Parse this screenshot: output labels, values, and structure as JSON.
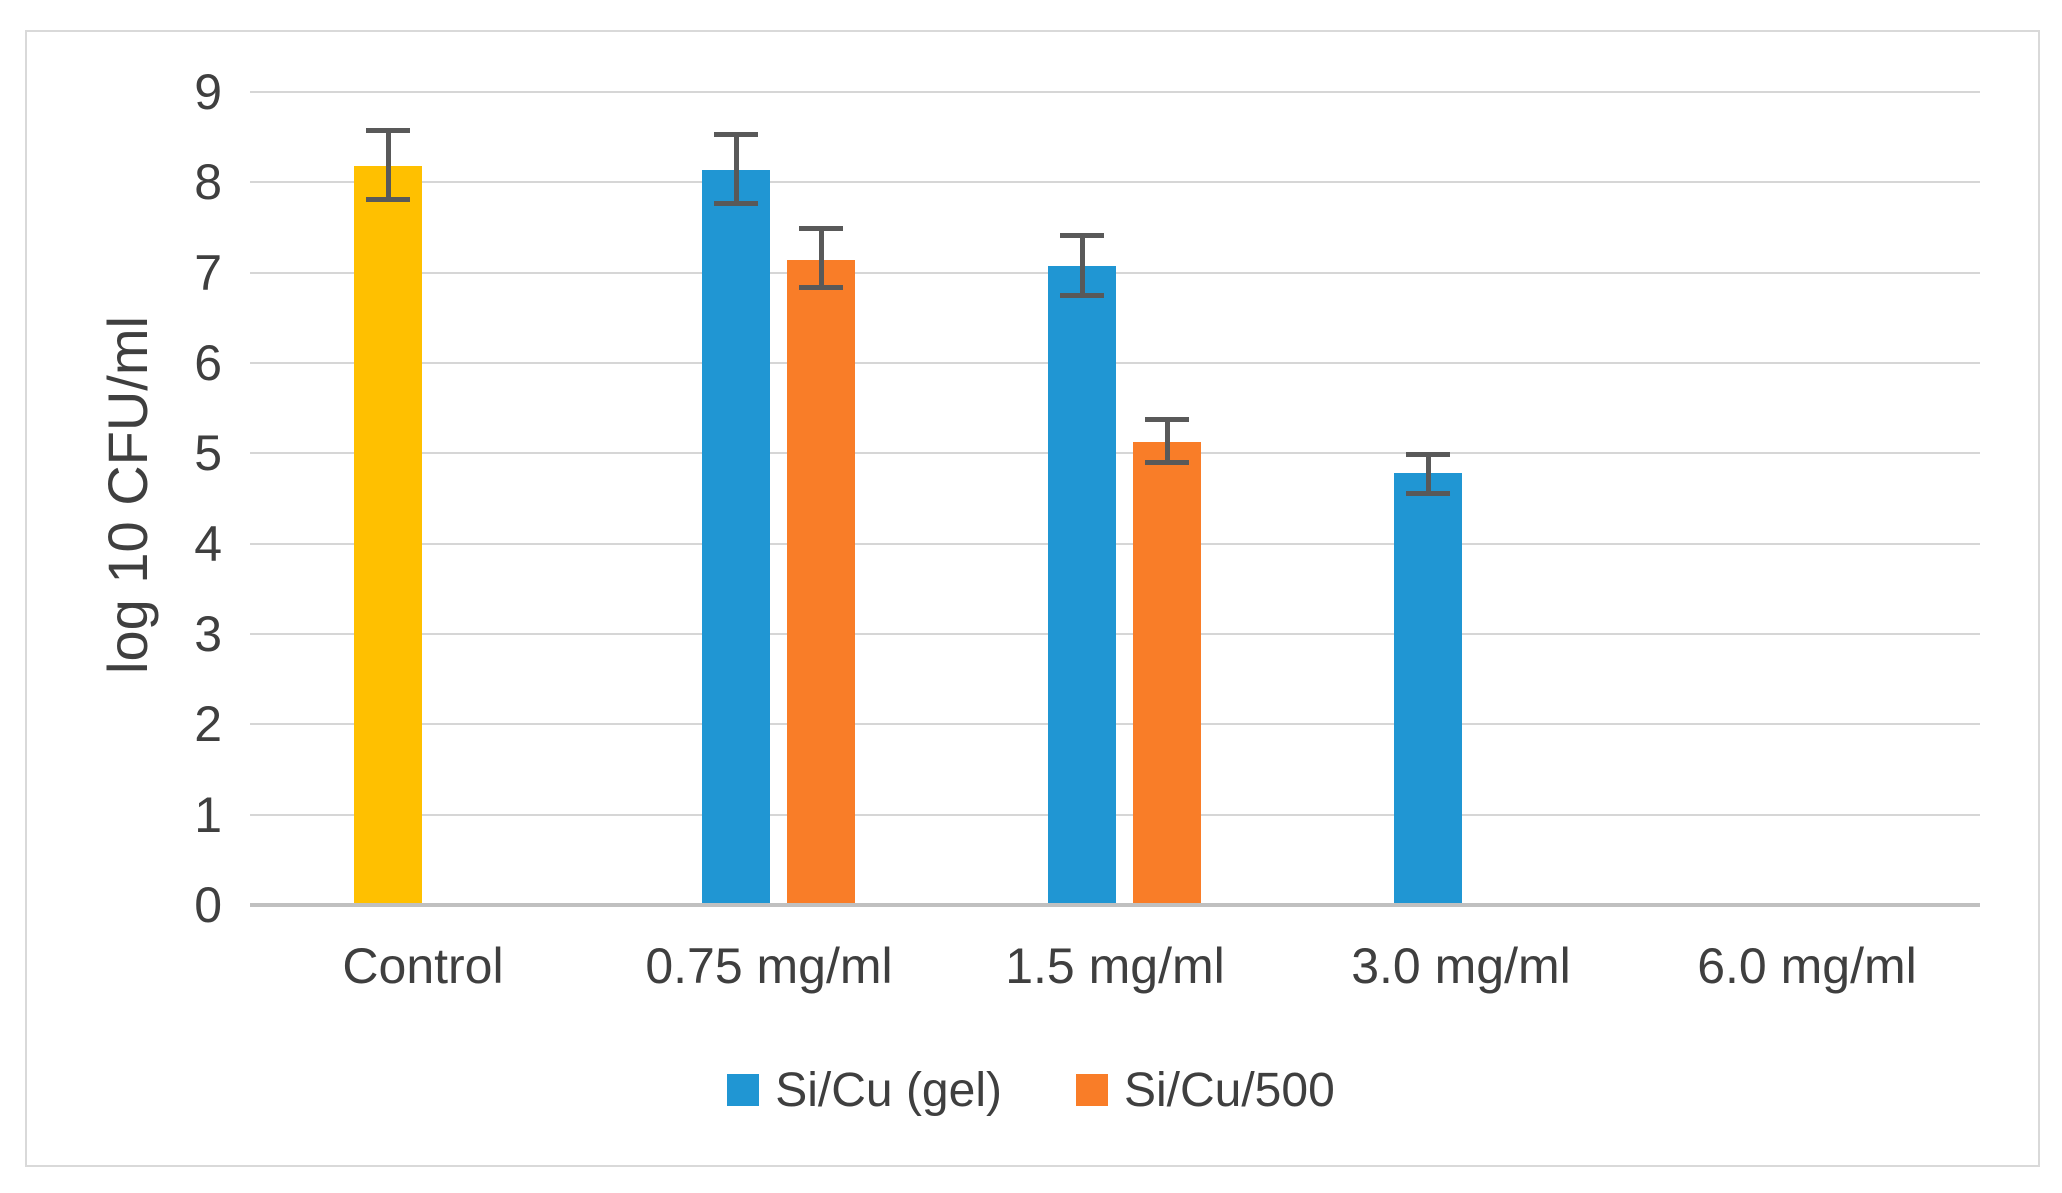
{
  "figure": {
    "background_color": "#FFFFFF",
    "border_color": "#D9D9D9"
  },
  "chart_data": {
    "type": "bar",
    "title": "",
    "xlabel": "",
    "ylabel": "log 10 CFU/ml",
    "ylim": [
      0,
      9
    ],
    "yticks": [
      0,
      1,
      2,
      3,
      4,
      5,
      6,
      7,
      8,
      9
    ],
    "grid": "horizontal",
    "gridline_color": "#D6D6D6",
    "axis_line_color": "#C0C0C0",
    "tick_label_color": "#3F3F3F",
    "error_bar_color": "#595959",
    "legend_position": "bottom",
    "categories": [
      "Control",
      "0.75 mg/ml",
      "1.5 mg/ml",
      "3.0 mg/ml",
      "6.0 mg/ml"
    ],
    "series": [
      {
        "name": "Control",
        "color": "#FFC000",
        "in_legend": false,
        "values": [
          8.18,
          null,
          null,
          null,
          null
        ],
        "err_plus": [
          0.42,
          null,
          null,
          null,
          null
        ],
        "err_minus": [
          0.4,
          null,
          null,
          null,
          null
        ]
      },
      {
        "name": "Si/Cu (gel)",
        "color": "#2096D3",
        "in_legend": true,
        "values": [
          null,
          8.14,
          7.07,
          4.78,
          null
        ],
        "err_plus": [
          null,
          0.42,
          0.37,
          0.24,
          null
        ],
        "err_minus": [
          null,
          0.4,
          0.35,
          0.25,
          null
        ]
      },
      {
        "name": "Si/Cu/500",
        "color": "#F97D28",
        "in_legend": true,
        "values": [
          null,
          7.14,
          5.12,
          null,
          null
        ],
        "err_plus": [
          null,
          0.38,
          0.28,
          null,
          null
        ],
        "err_minus": [
          null,
          0.33,
          0.25,
          null,
          null
        ]
      }
    ]
  }
}
